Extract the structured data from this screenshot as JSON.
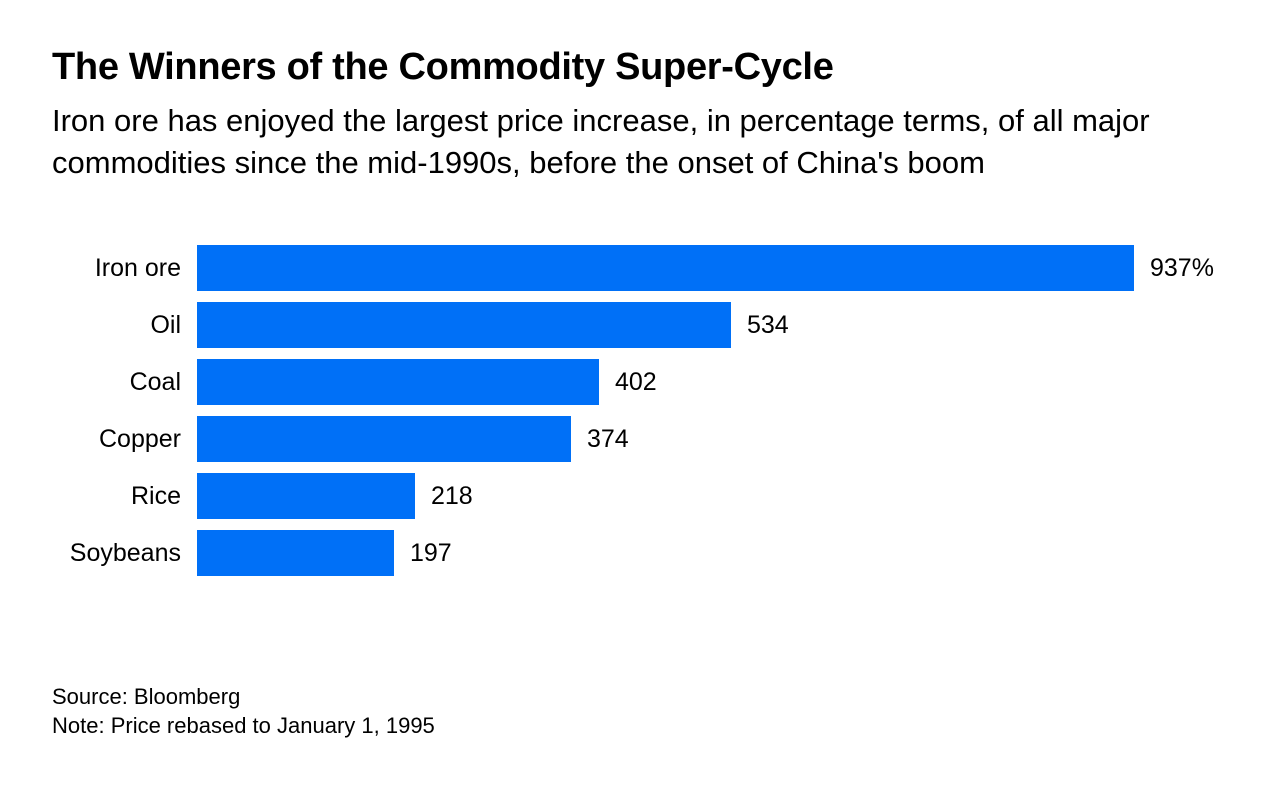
{
  "header": {
    "title": "The Winners of the Commodity Super-Cycle",
    "subtitle": "Iron ore has enjoyed the largest price increase, in percentage terms, of all major commodities since the mid-1990s, before the onset of China's boom"
  },
  "chart_data": {
    "type": "bar",
    "orientation": "horizontal",
    "categories": [
      "Iron ore",
      "Oil",
      "Coal",
      "Copper",
      "Rice",
      "Soybeans"
    ],
    "values": [
      937,
      534,
      402,
      374,
      218,
      197
    ],
    "value_labels": [
      "937%",
      "534",
      "402",
      "374",
      "218",
      "197"
    ],
    "unit": "%",
    "xlim": [
      0,
      937
    ],
    "grid": false,
    "legend": "none",
    "bar_color": "#0070f7"
  },
  "footer": {
    "source": "Source: Bloomberg",
    "note": "Note: Price rebased to January 1, 1995"
  }
}
